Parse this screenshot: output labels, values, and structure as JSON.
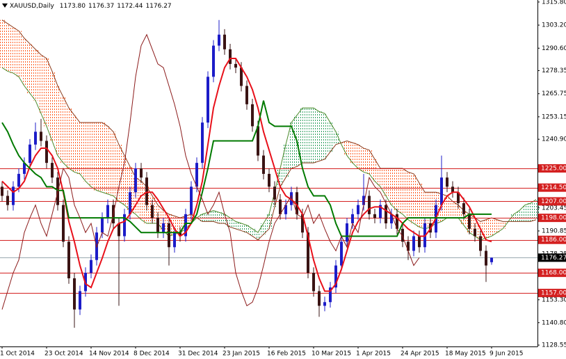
{
  "header": {
    "symbol": "XAUUSD,Daily",
    "ohlc": [
      "1173.80",
      "1176.37",
      "1172.44",
      "1176.27"
    ]
  },
  "chart_data": {
    "type": "candlestick",
    "categories": [
      "1 Oct 2014",
      null,
      null,
      null,
      null,
      null,
      null,
      null,
      "23 Oct 2014",
      null,
      null,
      null,
      null,
      null,
      null,
      null,
      "14 Nov 2014",
      null,
      null,
      null,
      null,
      null,
      null,
      null,
      "8 Dec 2014",
      null,
      null,
      null,
      null,
      null,
      null,
      null,
      "31 Dec 2014",
      null,
      null,
      null,
      null,
      null,
      null,
      null,
      "23 Jan 2015",
      null,
      null,
      null,
      null,
      null,
      null,
      null,
      "16 Feb 2015",
      null,
      null,
      null,
      null,
      null,
      null,
      null,
      "10 Mar 2015",
      null,
      null,
      null,
      null,
      null,
      null,
      null,
      "1 Apr 2015",
      null,
      null,
      null,
      null,
      null,
      null,
      null,
      "24 Apr 2015",
      null,
      null,
      null,
      null,
      null,
      null,
      null,
      "18 May 2015",
      null,
      null,
      null,
      null,
      null,
      null,
      null,
      "9 Jun 2015",
      null,
      null,
      null,
      null,
      null,
      null,
      null,
      null
    ],
    "candles": [
      [
        1215,
        1218,
        1207,
        1210
      ],
      [
        1210,
        1213,
        1202,
        1205
      ],
      [
        1205,
        1218,
        1202,
        1215
      ],
      [
        1215,
        1225,
        1212,
        1222
      ],
      [
        1222,
        1231,
        1219,
        1228
      ],
      [
        1228,
        1241,
        1225,
        1238
      ],
      [
        1238,
        1250,
        1235,
        1245
      ],
      [
        1245,
        1252,
        1237,
        1240
      ],
      [
        1240,
        1243,
        1225,
        1228
      ],
      [
        1228,
        1231,
        1217,
        1220
      ],
      [
        1220,
        1223,
        1202,
        1205
      ],
      [
        1205,
        1208,
        1182,
        1185
      ],
      [
        1185,
        1188,
        1162,
        1165
      ],
      [
        1165,
        1168,
        1138,
        1148
      ],
      [
        1148,
        1161,
        1145,
        1158
      ],
      [
        1158,
        1171,
        1155,
        1168
      ],
      [
        1168,
        1178,
        1165,
        1175
      ],
      [
        1175,
        1193,
        1172,
        1190
      ],
      [
        1190,
        1201,
        1187,
        1198
      ],
      [
        1198,
        1208,
        1195,
        1205
      ],
      [
        1205,
        1208,
        1192,
        1195
      ],
      [
        1195,
        1198,
        1150,
        1188
      ],
      [
        1188,
        1203,
        1185,
        1200
      ],
      [
        1200,
        1215,
        1197,
        1212
      ],
      [
        1212,
        1228,
        1209,
        1225
      ],
      [
        1225,
        1228,
        1217,
        1220
      ],
      [
        1220,
        1223,
        1202,
        1205
      ],
      [
        1205,
        1208,
        1195,
        1198
      ],
      [
        1198,
        1201,
        1187,
        1190
      ],
      [
        1190,
        1198,
        1187,
        1195
      ],
      [
        1195,
        1198,
        1172,
        1182
      ],
      [
        1182,
        1193,
        1179,
        1190
      ],
      [
        1190,
        1193,
        1185,
        1188
      ],
      [
        1188,
        1203,
        1185,
        1200
      ],
      [
        1200,
        1218,
        1197,
        1215
      ],
      [
        1215,
        1231,
        1212,
        1228
      ],
      [
        1228,
        1253,
        1225,
        1250
      ],
      [
        1250,
        1278,
        1247,
        1275
      ],
      [
        1275,
        1295,
        1272,
        1292
      ],
      [
        1292,
        1306,
        1289,
        1298
      ],
      [
        1298,
        1301,
        1287,
        1290
      ],
      [
        1290,
        1293,
        1279,
        1282
      ],
      [
        1282,
        1285,
        1277,
        1280
      ],
      [
        1280,
        1283,
        1267,
        1270
      ],
      [
        1270,
        1273,
        1257,
        1260
      ],
      [
        1260,
        1263,
        1245,
        1248
      ],
      [
        1248,
        1251,
        1229,
        1232
      ],
      [
        1232,
        1235,
        1219,
        1222
      ],
      [
        1222,
        1225,
        1212,
        1215
      ],
      [
        1215,
        1218,
        1205,
        1208
      ],
      [
        1208,
        1211,
        1197,
        1200
      ],
      [
        1200,
        1208,
        1197,
        1205
      ],
      [
        1205,
        1215,
        1202,
        1212
      ],
      [
        1212,
        1215,
        1197,
        1200
      ],
      [
        1200,
        1203,
        1187,
        1190
      ],
      [
        1190,
        1193,
        1165,
        1168
      ],
      [
        1168,
        1171,
        1155,
        1158
      ],
      [
        1158,
        1161,
        1144,
        1150
      ],
      [
        1150,
        1155,
        1147,
        1152
      ],
      [
        1152,
        1163,
        1149,
        1160
      ],
      [
        1160,
        1175,
        1157,
        1172
      ],
      [
        1172,
        1188,
        1169,
        1185
      ],
      [
        1185,
        1198,
        1182,
        1195
      ],
      [
        1195,
        1203,
        1192,
        1200
      ],
      [
        1200,
        1208,
        1197,
        1205
      ],
      [
        1205,
        1222,
        1202,
        1210
      ],
      [
        1210,
        1213,
        1197,
        1200
      ],
      [
        1200,
        1203,
        1195,
        1198
      ],
      [
        1198,
        1208,
        1195,
        1205
      ],
      [
        1205,
        1208,
        1192,
        1195
      ],
      [
        1195,
        1203,
        1192,
        1200
      ],
      [
        1200,
        1203,
        1189,
        1192
      ],
      [
        1192,
        1195,
        1182,
        1185
      ],
      [
        1185,
        1188,
        1175,
        1180
      ],
      [
        1180,
        1191,
        1177,
        1188
      ],
      [
        1188,
        1191,
        1179,
        1182
      ],
      [
        1182,
        1198,
        1179,
        1195
      ],
      [
        1195,
        1198,
        1187,
        1190
      ],
      [
        1190,
        1208,
        1187,
        1205
      ],
      [
        1205,
        1232,
        1202,
        1220
      ],
      [
        1220,
        1223,
        1212,
        1215
      ],
      [
        1215,
        1218,
        1209,
        1212
      ],
      [
        1212,
        1215,
        1203,
        1206
      ],
      [
        1206,
        1209,
        1197,
        1200
      ],
      [
        1200,
        1203,
        1189,
        1192
      ],
      [
        1192,
        1195,
        1185,
        1188
      ],
      [
        1188,
        1191,
        1177,
        1180
      ],
      [
        1180,
        1183,
        1163,
        1172
      ],
      [
        1173.8,
        1176.37,
        1172.44,
        1176.27
      ],
      null,
      null,
      null,
      null,
      null,
      null,
      null,
      null
    ],
    "bull_color": "#1c1cc8",
    "bear_color": "#3a1414",
    "cloud": {
      "up_color": "#2e9e5e",
      "down_color": "#ff5a1e",
      "span_a_color": "#4a8a2a",
      "span_b_color": "#8b3a1a",
      "span_a": [
        1280,
        1278,
        1277,
        1275,
        1270,
        1266,
        1262,
        1255,
        1248,
        1240,
        1232,
        1228,
        1225,
        1223,
        1222,
        1218,
        1215,
        1213,
        1212,
        1211,
        1210,
        1207,
        1205,
        1202,
        1200,
        1197,
        1195,
        1195,
        1195,
        1191,
        1188,
        1189,
        1190,
        1192,
        1195,
        1198,
        1200,
        1201,
        1202,
        1201,
        1200,
        1198,
        1196,
        1195,
        1194,
        1192,
        1190,
        1195,
        1200,
        1212,
        1225,
        1238,
        1250,
        1254,
        1258,
        1258,
        1258,
        1256,
        1255,
        1250,
        1245,
        1238,
        1232,
        1228,
        1225,
        1223,
        1222,
        1218,
        1215,
        1210,
        1205,
        1202,
        1200,
        1197,
        1195,
        1193,
        1192,
        1193,
        1195,
        1196,
        1198,
        1198,
        1198,
        1194,
        1190,
        1188,
        1186,
        1187,
        1188,
        1190,
        1192,
        1196,
        1200,
        1202,
        1205,
        1206,
        1208
      ],
      "span_b": [
        1306,
        1304,
        1302,
        1300,
        1296,
        1293,
        1290,
        1287,
        1285,
        1278,
        1270,
        1264,
        1258,
        1254,
        1250,
        1250,
        1250,
        1250,
        1250,
        1248,
        1245,
        1238,
        1232,
        1226,
        1220,
        1218,
        1215,
        1210,
        1205,
        1202,
        1200,
        1199,
        1198,
        1199,
        1200,
        1198,
        1196,
        1196,
        1196,
        1195,
        1195,
        1193,
        1192,
        1191,
        1190,
        1188,
        1186,
        1189,
        1192,
        1204,
        1215,
        1220,
        1225,
        1226,
        1228,
        1228,
        1228,
        1229,
        1230,
        1234,
        1238,
        1239,
        1240,
        1239,
        1238,
        1236,
        1235,
        1230,
        1225,
        1225,
        1225,
        1225,
        1225,
        1223,
        1222,
        1217,
        1212,
        1212,
        1212,
        1211,
        1210,
        1207,
        1205,
        1202,
        1200,
        1198,
        1196,
        1197,
        1198,
        1197,
        1196,
        1196,
        1196,
        1196,
        1196,
        1196,
        1197
      ]
    },
    "lines": [
      {
        "color": "#e8101a",
        "width": 2,
        "values": [
          1218,
          1215,
          1212,
          1214,
          1218,
          1226,
          1232,
          1236,
          1236,
          1232,
          1225,
          1212,
          1196,
          1185,
          1172,
          1162,
          1160,
          1168,
          1176,
          1185,
          1192,
          1195,
          1196,
          1200,
          1205,
          1210,
          1212,
          1212,
          1208,
          1203,
          1198,
          1192,
          1188,
          1190,
          1195,
          1205,
          1218,
          1238,
          1258,
          1270,
          1280,
          1285,
          1285,
          1280,
          1275,
          1268,
          1258,
          1245,
          1235,
          1225,
          1215,
          1210,
          1208,
          1205,
          1200,
          1188,
          1175,
          1165,
          1158,
          1158,
          1162,
          1170,
          1180,
          1190,
          1196,
          1200,
          1203,
          1204,
          1204,
          1202,
          1200,
          1198,
          1195,
          1192,
          1190,
          1188,
          1188,
          1192,
          1198,
          1205,
          1210,
          1212,
          1212,
          1208,
          1204,
          1198,
          1192,
          1186,
          1185,
          null,
          null,
          null,
          null,
          null,
          null,
          null,
          null
        ]
      },
      {
        "color": "#007a00",
        "width": 2,
        "values": [
          1250,
          1245,
          1238,
          1232,
          1228,
          1225,
          1222,
          1220,
          1215,
          1215,
          1213,
          1213,
          1198,
          1198,
          1198,
          1198,
          1198,
          1198,
          1198,
          1198,
          1198,
          1198,
          1198,
          1196,
          1193,
          1190,
          1190,
          1190,
          1190,
          1190,
          1190,
          1190,
          1190,
          1195,
          1195,
          1200,
          1212,
          1225,
          1240,
          1240,
          1240,
          1240,
          1240,
          1240,
          1240,
          1240,
          1248,
          1262,
          1250,
          1248,
          1248,
          1248,
          1248,
          1240,
          1225,
          1215,
          1210,
          1210,
          1210,
          1205,
          1195,
          1188,
          1188,
          1188,
          1188,
          1188,
          1188,
          1188,
          1188,
          1188,
          1188,
          1188,
          1195,
          1198,
          1198,
          1198,
          1198,
          1198,
          1198,
          1198,
          1198,
          1198,
          1198,
          1198,
          1200,
          1200,
          1200,
          1200,
          1200,
          null,
          null,
          null,
          null,
          null,
          null,
          null,
          null
        ]
      },
      {
        "color": "#8b1a1a",
        "width": 1,
        "values": [
          1148,
          1158,
          1168,
          1175,
          1190,
          1198,
          1205,
          1195,
          1188,
          1200,
          1212,
          1225,
          1220,
          1205,
          1198,
          1190,
          1195,
          1182,
          1190,
          1188,
          1200,
          1215,
          1228,
          1250,
          1275,
          1292,
          1298,
          1290,
          1282,
          1280,
          1270,
          1260,
          1248,
          1232,
          1222,
          1215,
          1208,
          1200,
          1205,
          1212,
          1200,
          1190,
          1168,
          1158,
          1150,
          1152,
          1160,
          1172,
          1185,
          1195,
          1200,
          1205,
          1210,
          1200,
          1198,
          1205,
          1195,
          1200,
          1192,
          1185,
          1180,
          1188,
          1182,
          1195,
          1190,
          1205,
          1220,
          1215,
          1212,
          1206,
          1200,
          1192,
          1188,
          1180,
          1172,
          1176.27,
          null,
          null,
          null,
          null,
          null,
          null,
          null,
          null,
          null,
          null,
          null,
          null,
          null,
          null,
          null,
          null,
          null,
          null,
          null,
          null,
          null
        ]
      }
    ],
    "ylim": [
      1127.8,
      1316.9
    ],
    "yticks": [
      {
        "value": 1315.8,
        "label": "1315.80"
      },
      {
        "value": 1303.2,
        "label": "1303.20"
      },
      {
        "value": 1290.6,
        "label": "1290.60"
      },
      {
        "value": 1278.35,
        "label": "1278.35"
      },
      {
        "value": 1265.75,
        "label": "1265.75"
      },
      {
        "value": 1253.15,
        "label": "1253.15"
      },
      {
        "value": 1240.9,
        "label": "1240.90"
      },
      {
        "value": 1203.45,
        "label": "1203.45"
      },
      {
        "value": 1190.85,
        "label": "1190.85"
      },
      {
        "value": 1178.25,
        "label": "1178.25"
      },
      {
        "value": 1153.3,
        "label": "1153.30"
      },
      {
        "value": 1140.8,
        "label": "1140.80"
      },
      {
        "value": 1128.55,
        "label": "1128.55"
      }
    ],
    "levels": [
      {
        "value": 1225,
        "label": "1225.00"
      },
      {
        "value": 1214.5,
        "label": "1214.50"
      },
      {
        "value": 1207,
        "label": "1207.00"
      },
      {
        "value": 1198,
        "label": "1198.00"
      },
      {
        "value": 1186,
        "label": "1186.00"
      },
      {
        "value": 1168,
        "label": "1168.00"
      },
      {
        "value": 1157,
        "label": "1157.00"
      }
    ],
    "level_color": "#d42020",
    "last_price": {
      "value": 1176.27,
      "label": "1176.27"
    },
    "last_price_color": "#9aa8b0",
    "grid": false
  }
}
